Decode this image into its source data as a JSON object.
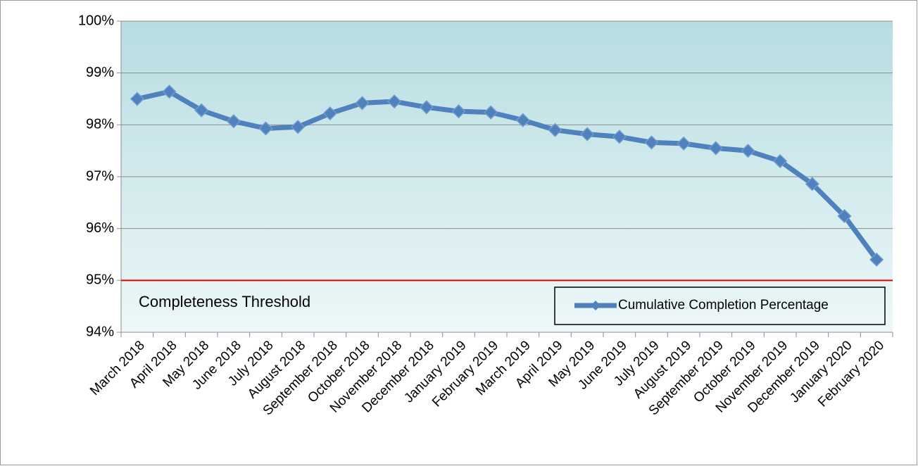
{
  "chart_data": {
    "type": "line",
    "categories": [
      "March 2018",
      "April 2018",
      "May 2018",
      "June 2018",
      "July 2018",
      "August 2018",
      "September 2018",
      "October 2018",
      "November 2018",
      "December 2018",
      "January 2019",
      "February 2019",
      "March 2019",
      "April 2019",
      "May 2019",
      "June 2019",
      "July 2019",
      "August 2019",
      "September 2019",
      "October 2019",
      "November 2019",
      "December 2019",
      "January 2020",
      "February 2020"
    ],
    "series": [
      {
        "name": "Cumulative Completion Percentage",
        "color": "#4f81bd",
        "values": [
          98.5,
          98.64,
          98.28,
          98.07,
          97.93,
          97.96,
          98.22,
          98.42,
          98.45,
          98.34,
          98.26,
          98.24,
          98.09,
          97.9,
          97.82,
          97.77,
          97.66,
          97.64,
          97.55,
          97.5,
          97.3,
          96.86,
          96.24,
          95.4
        ]
      }
    ],
    "ylim": [
      94,
      100
    ],
    "yticks": [
      {
        "value": 94,
        "label": "94%"
      },
      {
        "value": 95,
        "label": "95%"
      },
      {
        "value": 96,
        "label": "96%"
      },
      {
        "value": 97,
        "label": "97%"
      },
      {
        "value": 98,
        "label": "98%"
      },
      {
        "value": 99,
        "label": "99%"
      },
      {
        "value": 100,
        "label": "100%"
      }
    ],
    "grid": true,
    "threshold": {
      "value": 95,
      "label": "Completeness Threshold",
      "color": "#e00000"
    },
    "legend": "lower right"
  }
}
